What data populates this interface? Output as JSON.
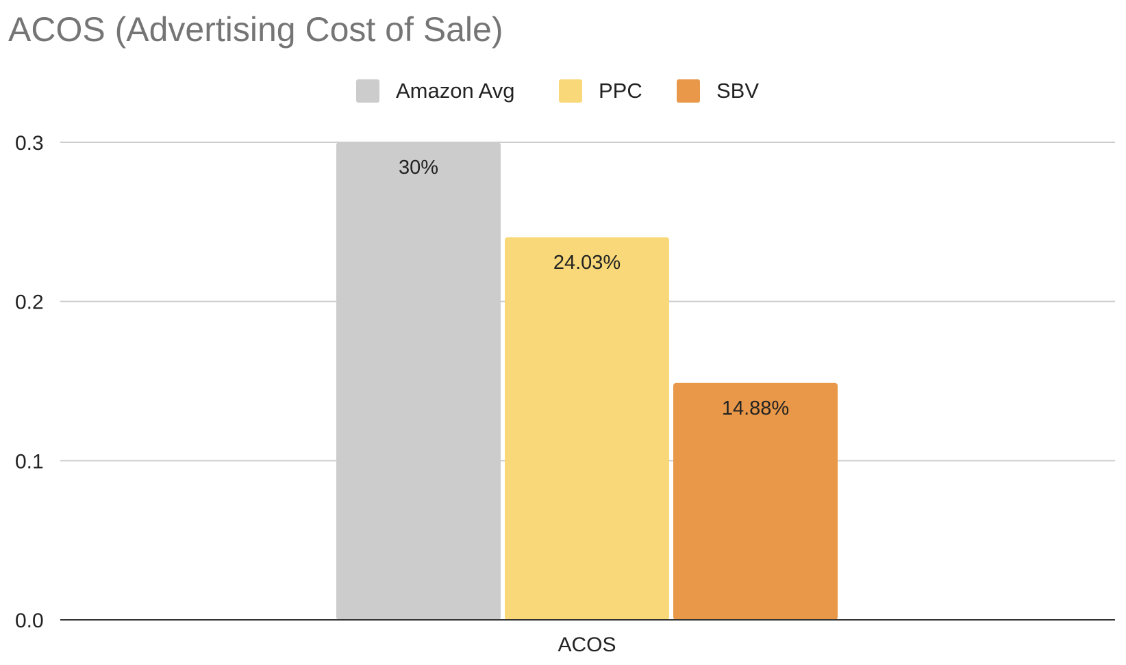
{
  "chart_data": {
    "type": "bar",
    "title": "ACOS (Advertising Cost of Sale)",
    "categories": [
      "ACOS"
    ],
    "series": [
      {
        "name": "Amazon Avg",
        "values": [
          0.3
        ],
        "label": "30%",
        "color": "#cccccc"
      },
      {
        "name": "PPC",
        "values": [
          0.2403
        ],
        "label": "24.03%",
        "color": "#f8d878"
      },
      {
        "name": "SBV",
        "values": [
          0.1488
        ],
        "label": "14.88%",
        "color": "#e89848"
      }
    ],
    "ylim": [
      0,
      0.3
    ],
    "yticks": [
      "0.0",
      "0.1",
      "0.2",
      "0.3"
    ],
    "xlabel": "",
    "ylabel": "",
    "grid": true,
    "legend_position": "top-center"
  }
}
